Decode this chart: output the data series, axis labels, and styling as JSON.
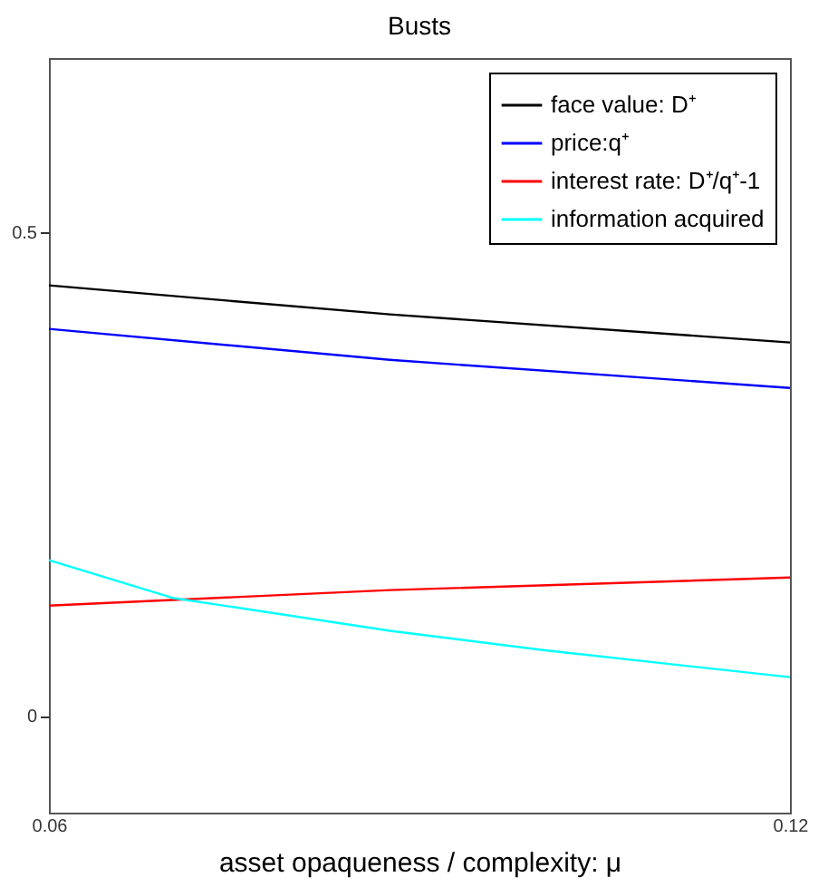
{
  "chart_data": {
    "type": "line",
    "title": "Busts",
    "xlabel": "asset opaqueness / complexity: μ",
    "xlim": [
      0.06,
      0.12
    ],
    "xticks": [
      0.06,
      0.12
    ],
    "ylim": [
      -0.1,
      0.68
    ],
    "yticks": [
      0,
      0.5
    ],
    "legend": "top right",
    "grid": false,
    "series": [
      {
        "name": "face value: D⁺",
        "color": "#000000",
        "x": [
          0.06,
          0.0876,
          0.12
        ],
        "values": [
          0.445,
          0.415,
          0.386
        ]
      },
      {
        "name": "price:q⁺",
        "color": "#0000ff",
        "x": [
          0.06,
          0.0876,
          0.12
        ],
        "values": [
          0.4,
          0.368,
          0.339
        ]
      },
      {
        "name": "interest rate: D⁺/q⁺-1",
        "color": "#ff0000",
        "x": [
          0.06,
          0.0876,
          0.12
        ],
        "values": [
          0.114,
          0.13,
          0.143
        ]
      },
      {
        "name": "information acquired",
        "color": "#00ffff",
        "x": [
          0.06,
          0.07,
          0.0876,
          0.1,
          0.12
        ],
        "values": [
          0.161,
          0.122,
          0.088,
          0.068,
          0.04
        ]
      }
    ]
  }
}
